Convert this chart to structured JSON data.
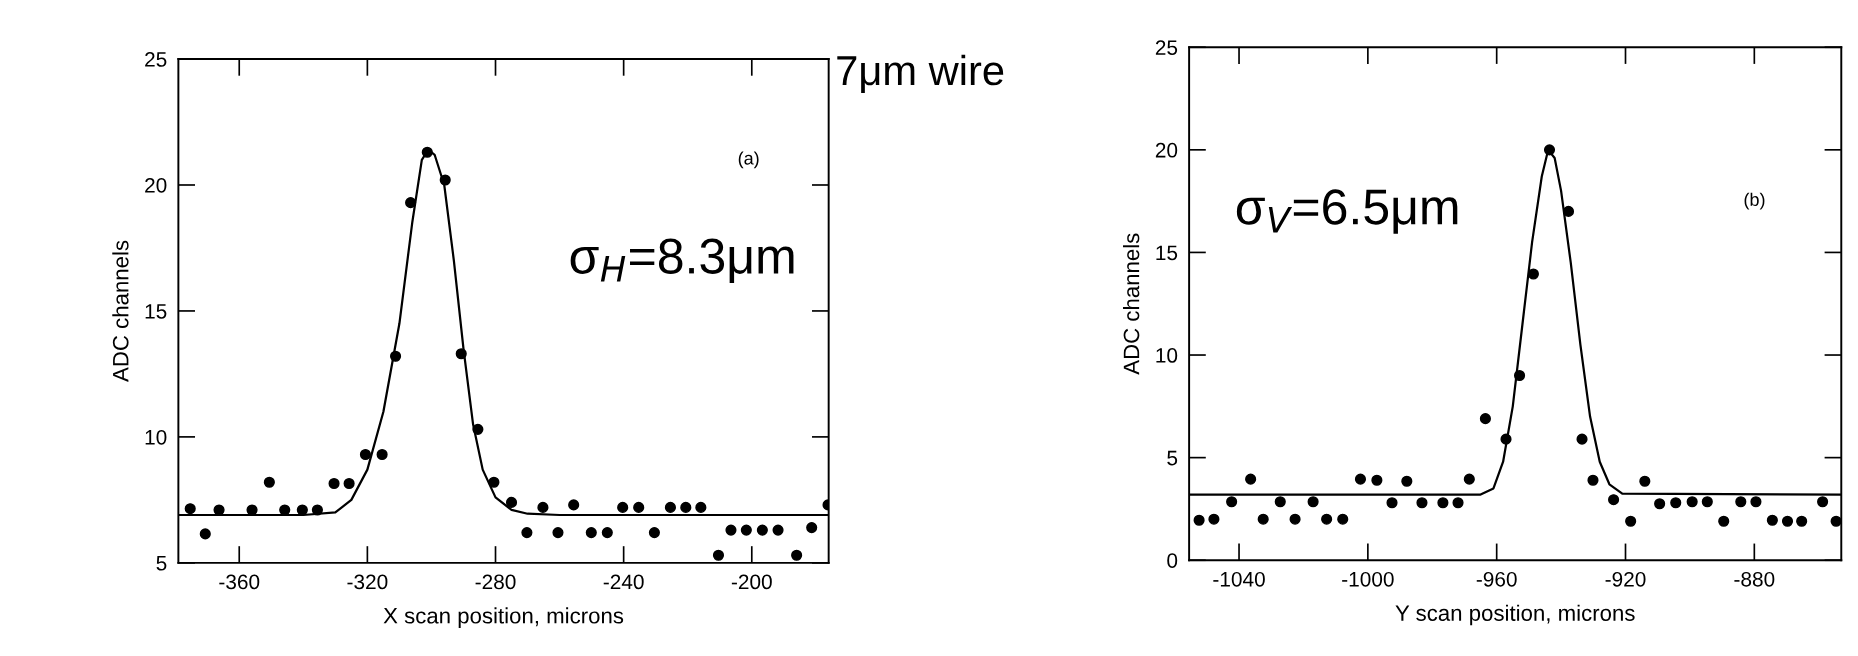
{
  "chart_data": [
    {
      "type": "scatter",
      "title": "7μm wire",
      "xlabel": "X scan position, microns",
      "ylabel": "ADC channels",
      "annotations": [
        "(a)",
        "σ$_{H}$=8.3μm"
      ],
      "xlim": [
        -379,
        -176
      ],
      "xticks": [
        -360,
        -320,
        -280,
        -240,
        -200
      ],
      "ylim": [
        5,
        25
      ],
      "yticks": [
        5,
        10,
        15,
        20,
        25
      ],
      "grid": false,
      "legend": false,
      "marker": "circle",
      "series": [
        {
          "color": "#000000",
          "x": [
            -375.3,
            -370.6,
            -366.3,
            -356,
            -350.6,
            -345.8,
            -340.3,
            -335.6,
            -330.4,
            -325.7,
            -320.6,
            -315.4,
            -311.2,
            -306.5,
            -301.3,
            -295.7,
            -290.7,
            -285.5,
            -280.5,
            -275,
            -270.2,
            -265.2,
            -260.5,
            -255.6,
            -250.1,
            -245.1,
            -240.3,
            -235.3,
            -230.4,
            -225.4,
            -220.6,
            -215.9,
            -210.4,
            -206.5,
            -201.7,
            -196.7,
            -191.8,
            -186,
            -181.3,
            -176.2
          ],
          "values": [
            7.15,
            6.15,
            7.1,
            7.1,
            8.2,
            7.1,
            7.1,
            7.1,
            8.15,
            8.15,
            9.3,
            9.3,
            13.2,
            19.3,
            21.3,
            20.2,
            13.3,
            10.3,
            8.2,
            7.4,
            6.2,
            7.2,
            6.2,
            7.3,
            6.2,
            6.2,
            7.2,
            7.2,
            6.2,
            7.2,
            7.2,
            7.2,
            5.3,
            6.3,
            6.3,
            6.3,
            6.3,
            5.3,
            6.4,
            7.3
          ]
        },
        {
          "type": "line",
          "color": "#000000",
          "line_style": "solid",
          "marker": "none",
          "x": [
            -379,
            -340,
            -330,
            -325,
            -320,
            -315,
            -310,
            -306,
            -303,
            -301,
            -299,
            -296,
            -293,
            -290,
            -287,
            -284,
            -280,
            -275,
            -270,
            -260,
            -176
          ],
          "values": [
            6.9,
            6.9,
            7.0,
            7.5,
            8.7,
            11,
            14.5,
            18.5,
            21,
            21.4,
            21.2,
            20,
            17,
            13.5,
            10.5,
            8.7,
            7.6,
            7.1,
            6.95,
            6.9,
            6.9
          ]
        }
      ]
    },
    {
      "type": "scatter",
      "xlabel": "Y scan position, microns",
      "ylabel": "ADC channels",
      "annotations": [
        "σ$_{V}$=6.5μm",
        "(b)"
      ],
      "xlim": [
        -1055.5,
        -853
      ],
      "xticks": [
        -1040,
        -1000,
        -960,
        -920,
        -880
      ],
      "ylim": [
        0,
        25
      ],
      "yticks": [
        0,
        5,
        10,
        15,
        20,
        25
      ],
      "grid": false,
      "legend": false,
      "marker": "circle",
      "series": [
        {
          "color": "#000000",
          "x": [
            -1052.4,
            -1047.8,
            -1042.3,
            -1036.4,
            -1032.5,
            -1027.2,
            -1022.6,
            -1017,
            -1012.8,
            -1007.8,
            -1002.3,
            -997.2,
            -992.5,
            -987.9,
            -983.2,
            -976.7,
            -972,
            -968.5,
            -963.5,
            -957.1,
            -952.9,
            -948.6,
            -943.6,
            -937.7,
            -933.5,
            -930.1,
            -923.7,
            -918.4,
            -914,
            -909.4,
            -904.4,
            -899.3,
            -894.6,
            -889.5,
            -884.2,
            -879.5,
            -874.4,
            -869.7,
            -865.3,
            -858.8,
            -854.6
          ],
          "values": [
            1.95,
            2,
            2.85,
            3.95,
            2,
            2.85,
            2,
            2.85,
            2,
            2,
            3.95,
            3.9,
            2.8,
            3.85,
            2.8,
            2.8,
            2.8,
            3.95,
            6.9,
            5.9,
            9,
            13.95,
            20,
            17,
            5.9,
            3.9,
            2.95,
            1.9,
            3.85,
            2.75,
            2.8,
            2.85,
            2.85,
            1.9,
            2.85,
            2.85,
            1.95,
            1.9,
            1.9,
            2.85,
            1.9
          ]
        },
        {
          "type": "line",
          "color": "#000000",
          "line_style": "solid",
          "marker": "none",
          "x": [
            -1055.5,
            -965,
            -961,
            -958,
            -955,
            -952,
            -949,
            -946,
            -944,
            -942,
            -940,
            -937,
            -934,
            -931,
            -928,
            -925,
            -921,
            -853
          ],
          "values": [
            3.2,
            3.2,
            3.5,
            4.8,
            7.5,
            11.5,
            15.5,
            18.7,
            20,
            19.6,
            18,
            14.5,
            10.5,
            7,
            4.8,
            3.7,
            3.25,
            3.2
          ]
        }
      ]
    }
  ]
}
